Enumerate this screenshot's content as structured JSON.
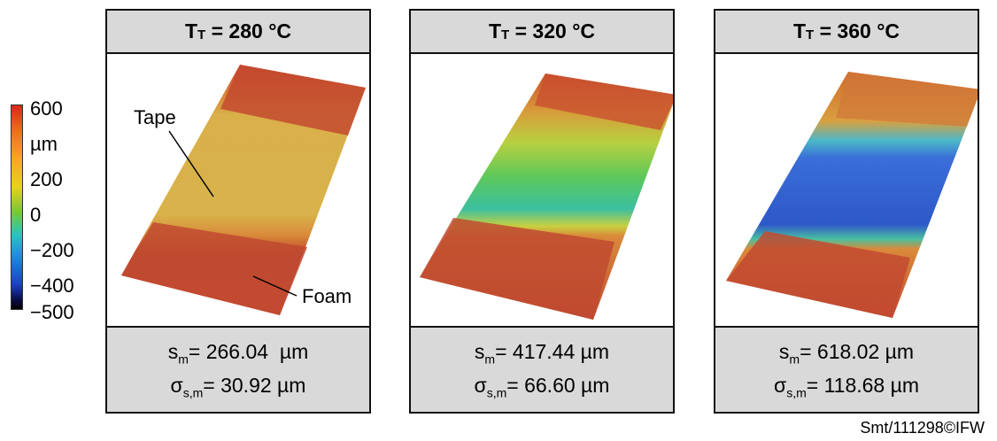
{
  "colorbar": {
    "labels": [
      "600",
      "µm",
      "200",
      "0",
      "−200",
      "−400",
      "−500"
    ]
  },
  "panels": [
    {
      "title_main": "T",
      "title_sub": "T",
      "title_rest": " = 280 °C",
      "sm_sym": "s",
      "sm_sub": "m",
      "sm_value": "= 266.04  µm",
      "sigma_sym": "σ",
      "sigma_sub": "s,m",
      "sigma_value": "= 30.92 µm",
      "annotations": {
        "tape": "Tape",
        "foam": "Foam"
      }
    },
    {
      "title_main": "T",
      "title_sub": "T",
      "title_rest": " = 320 °C",
      "sm_sym": "s",
      "sm_sub": "m",
      "sm_value": "= 417.44 µm",
      "sigma_sym": "σ",
      "sigma_sub": "s,m",
      "sigma_value": "= 66.60 µm"
    },
    {
      "title_main": "T",
      "title_sub": "T",
      "title_rest": " = 360 °C",
      "sm_sym": "s",
      "sm_sub": "m",
      "sm_value": "= 618.02 µm",
      "sigma_sym": "σ",
      "sigma_sub": "s,m",
      "sigma_value": "= 118.68 µm"
    }
  ],
  "credit": "Smt/111298©IFW"
}
